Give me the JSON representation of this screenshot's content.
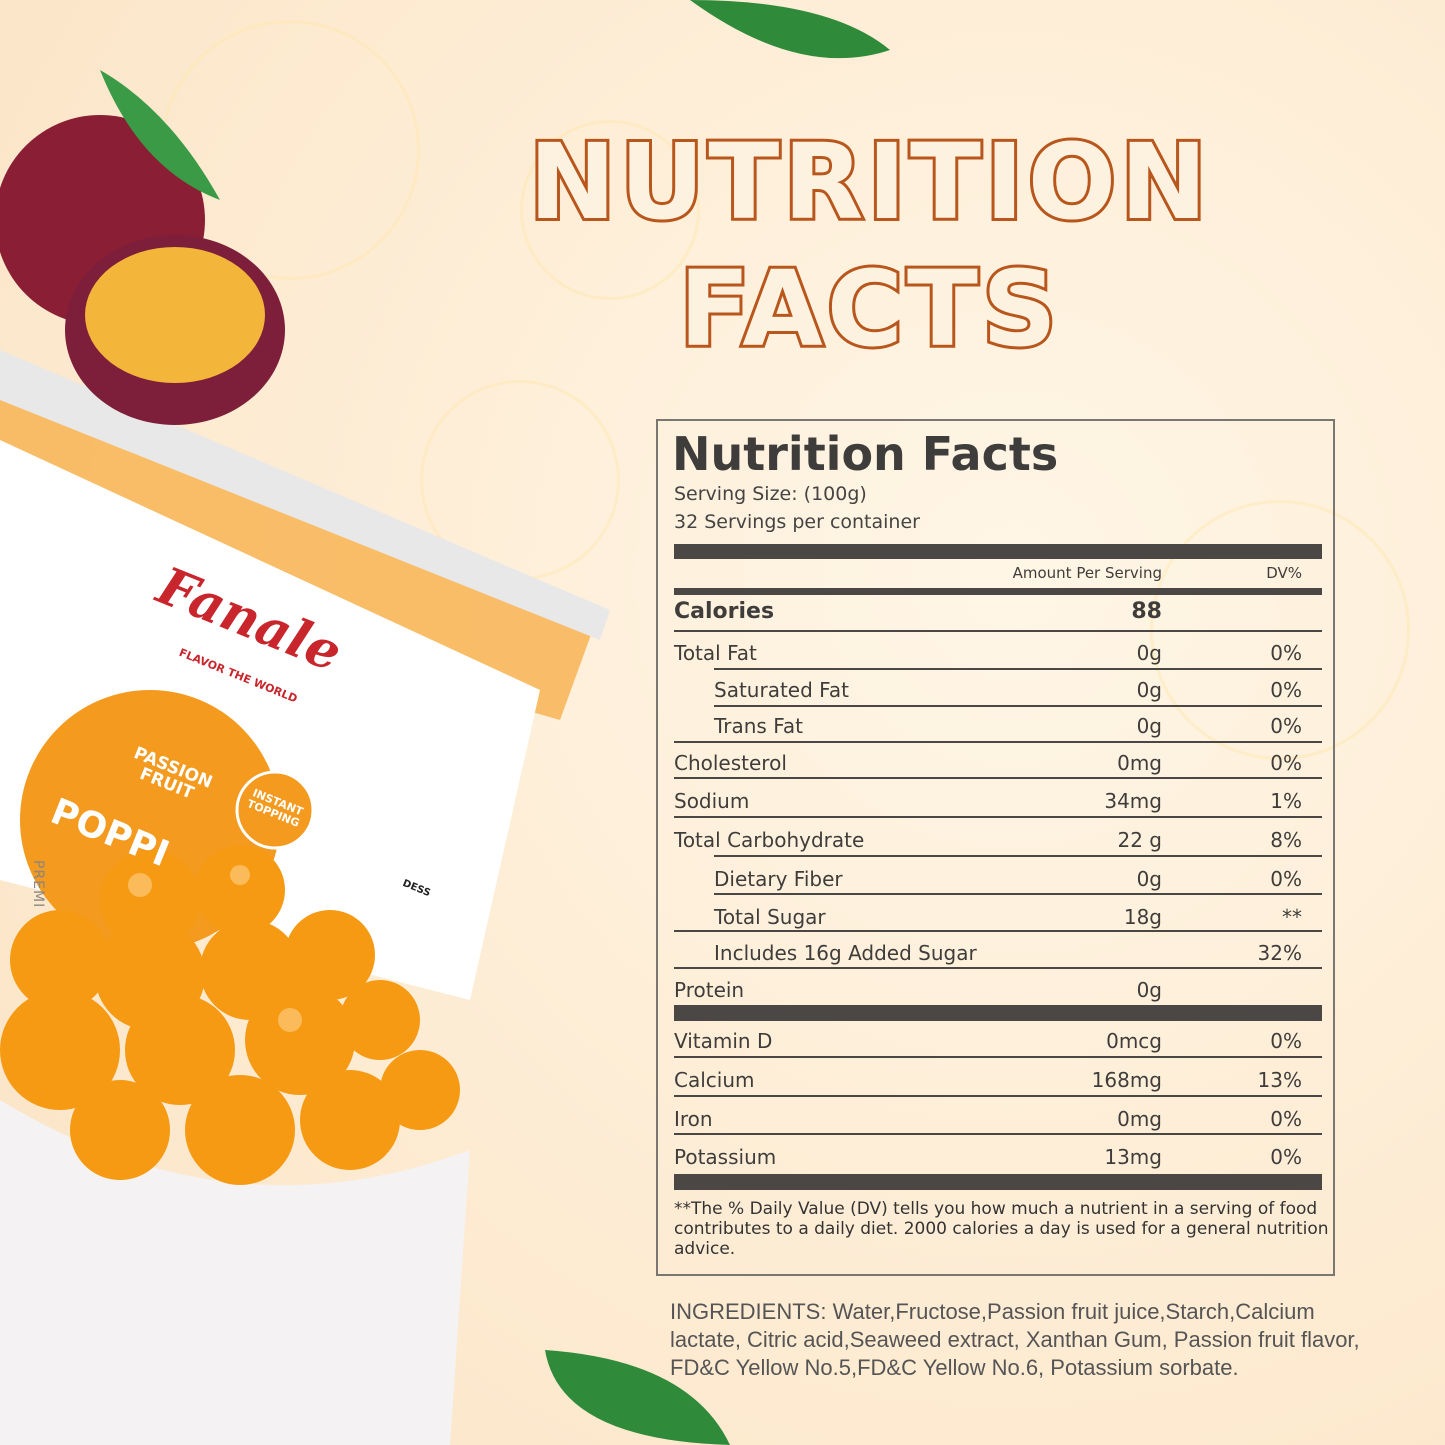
{
  "headline": {
    "line1": "NUTRITION",
    "line2": "FACTS"
  },
  "product": {
    "brand": "Fanale",
    "tagline": "FLAVOR THE WORLD",
    "flavor": "PASSION FRUIT",
    "name": "POPPI",
    "badge": "INSTANT TOPPING",
    "side": "PREMI",
    "desc": "DESS"
  },
  "label": {
    "title": "Nutrition Facts",
    "serving_size": "Serving Size:  (100g)",
    "servings": "32 Servings per container",
    "col_amount": "Amount Per Serving",
    "col_dv": "DV%",
    "calories_label": "Calories",
    "calories": "88",
    "rows": [
      {
        "name": "Total Fat",
        "amount": "0g",
        "dv": "0%"
      },
      {
        "name": "Saturated Fat",
        "amount": "0g",
        "dv": "0%"
      },
      {
        "name": "Trans Fat",
        "amount": "0g",
        "dv": "0%"
      },
      {
        "name": "Cholesterol",
        "amount": "0mg",
        "dv": "0%"
      },
      {
        "name": "Sodium",
        "amount": "34mg",
        "dv": "1%"
      },
      {
        "name": "Total Carbohydrate",
        "amount": "22 g",
        "dv": "8%"
      },
      {
        "name": "Dietary Fiber",
        "amount": "0g",
        "dv": "0%"
      },
      {
        "name": "Total Sugar",
        "amount": "18g",
        "dv": "**"
      },
      {
        "name": "Includes 16g Added Sugar",
        "amount": "",
        "dv": "32%"
      },
      {
        "name": "Protein",
        "amount": "0g",
        "dv": ""
      },
      {
        "name": "Vitamin D",
        "amount": "0mcg",
        "dv": "0%"
      },
      {
        "name": "Calcium",
        "amount": "168mg",
        "dv": "13%"
      },
      {
        "name": "Iron",
        "amount": "0mg",
        "dv": "0%"
      },
      {
        "name": "Potassium",
        "amount": "13mg",
        "dv": "0%"
      }
    ],
    "footnote": "**The % Daily Value (DV) tells you how much a nutrient in a serving of food contributes to a daily diet. 2000 calories a  day is used for a general nutrition advice."
  },
  "ingredients": "INGREDIENTS: Water,Fructose,Passion fruit juice,Starch,Calcium lactate, Citric acid,Seaweed extract, Xanthan Gum, Passion fruit flavor, FD&C Yellow No.5,FD&C Yellow No.6, Potassium sorbate.",
  "colors": {
    "headline_stroke": "#b8561c",
    "label_dark": "#4a4745",
    "brand_red": "#c8262c",
    "orange": "#f39a1f"
  }
}
